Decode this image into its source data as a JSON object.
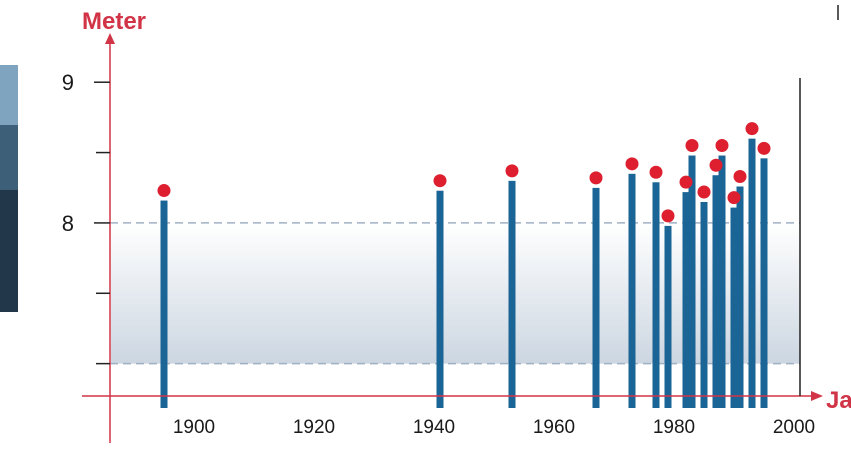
{
  "chart_data": {
    "type": "scatter",
    "ylabel": "Meter",
    "xlabel": "Jal",
    "xticks": [
      1900,
      1920,
      1940,
      1960,
      1980,
      2000
    ],
    "yticks": [
      9,
      8
    ],
    "xlim": [
      1888,
      2003
    ],
    "ylim": [
      6.77,
      9.3
    ],
    "shaded_band": [
      7.0,
      8.0
    ],
    "grid": false,
    "colors": {
      "axis": "#d23447",
      "bar": "#1a6496",
      "point": "#dd1f30",
      "band_top": "#ffffff",
      "band_bottom": "#ccd6e1",
      "dash": "#9fb1c4",
      "tick": "#1a1a1a"
    },
    "points": [
      {
        "x": 1897,
        "y": 8.23
      },
      {
        "x": 1943,
        "y": 8.3
      },
      {
        "x": 1955,
        "y": 8.37
      },
      {
        "x": 1969,
        "y": 8.32
      },
      {
        "x": 1975,
        "y": 8.42
      },
      {
        "x": 1979,
        "y": 8.36
      },
      {
        "x": 1981,
        "y": 8.05
      },
      {
        "x": 1984,
        "y": 8.29
      },
      {
        "x": 1985,
        "y": 8.55
      },
      {
        "x": 1987,
        "y": 8.22
      },
      {
        "x": 1989,
        "y": 8.41
      },
      {
        "x": 1990,
        "y": 8.55
      },
      {
        "x": 1992,
        "y": 8.18
      },
      {
        "x": 1993,
        "y": 8.33
      },
      {
        "x": 1995,
        "y": 8.67
      },
      {
        "x": 1997,
        "y": 8.53
      }
    ]
  }
}
